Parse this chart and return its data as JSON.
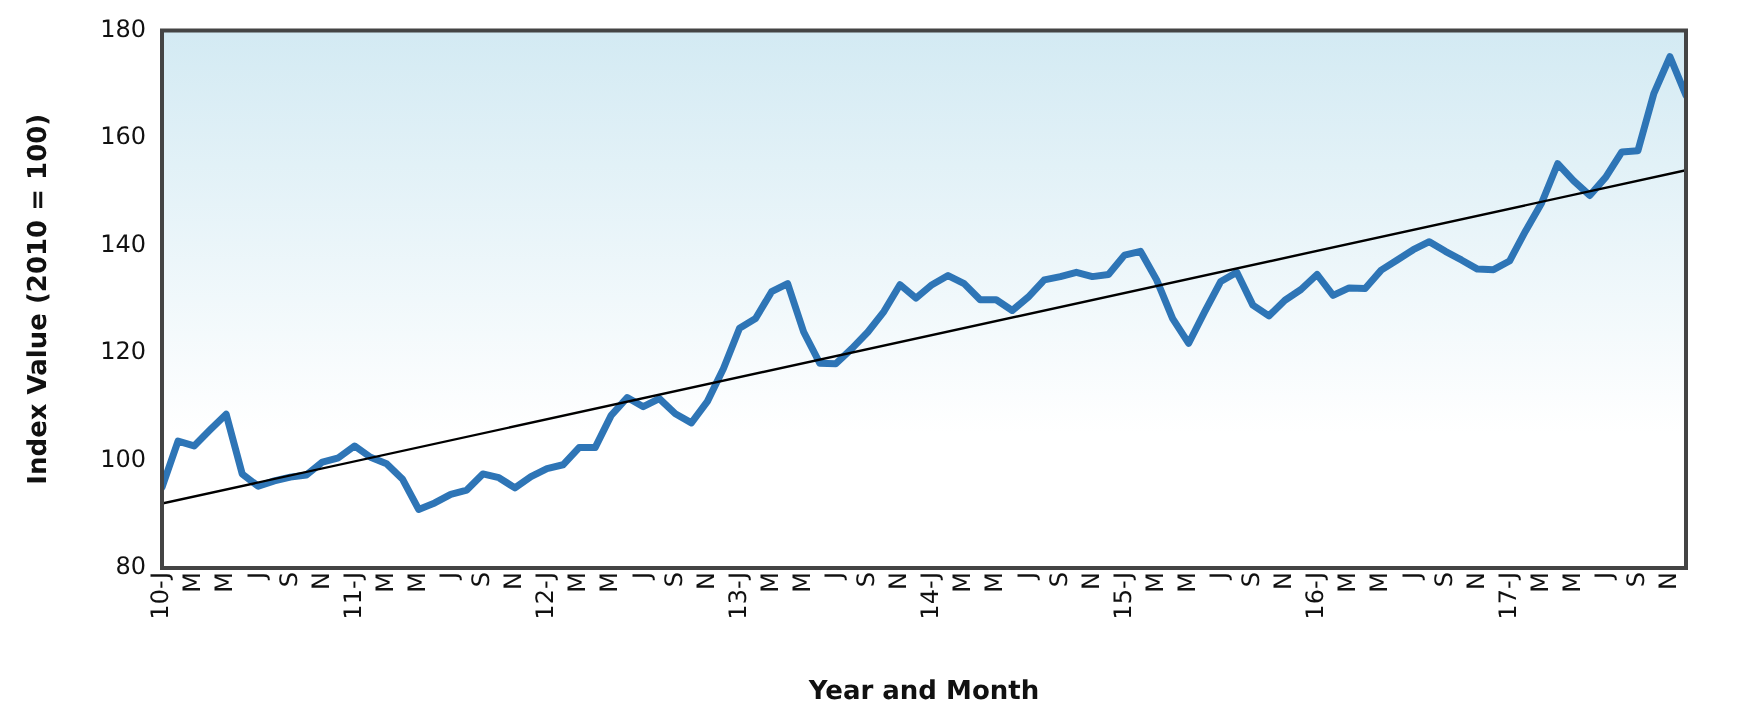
{
  "chart_data": {
    "type": "line",
    "xlabel": "Year and Month",
    "ylabel": "Index Value (2010 = 100)",
    "x": [
      "2010-01",
      "2010-02",
      "2010-03",
      "2010-04",
      "2010-05",
      "2010-06",
      "2010-07",
      "2010-08",
      "2010-09",
      "2010-10",
      "2010-11",
      "2010-12",
      "2011-01",
      "2011-02",
      "2011-03",
      "2011-04",
      "2011-05",
      "2011-06",
      "2011-07",
      "2011-08",
      "2011-09",
      "2011-10",
      "2011-11",
      "2011-12",
      "2012-01",
      "2012-02",
      "2012-03",
      "2012-04",
      "2012-05",
      "2012-06",
      "2012-07",
      "2012-08",
      "2012-09",
      "2012-10",
      "2012-11",
      "2012-12",
      "2013-01",
      "2013-02",
      "2013-03",
      "2013-04",
      "2013-05",
      "2013-06",
      "2013-07",
      "2013-08",
      "2013-09",
      "2013-10",
      "2013-11",
      "2013-12",
      "2014-01",
      "2014-02",
      "2014-03",
      "2014-04",
      "2014-05",
      "2014-06",
      "2014-07",
      "2014-08",
      "2014-09",
      "2014-10",
      "2014-11",
      "2014-12",
      "2015-01",
      "2015-02",
      "2015-03",
      "2015-04",
      "2015-05",
      "2015-06",
      "2015-07",
      "2015-08",
      "2015-09",
      "2015-10",
      "2015-11",
      "2015-12",
      "2016-01",
      "2016-02",
      "2016-03",
      "2016-04",
      "2016-05",
      "2016-06",
      "2016-07",
      "2016-08",
      "2016-09",
      "2016-10",
      "2016-11",
      "2016-12",
      "2017-01",
      "2017-02",
      "2017-03",
      "2017-04",
      "2017-05",
      "2017-06",
      "2017-07",
      "2017-08",
      "2017-09",
      "2017-10",
      "2017-11",
      "2017-12"
    ],
    "xlim": [
      "2010-01",
      "2017-12"
    ],
    "xticks": [
      {
        "value": "2010-01",
        "label": "10-J"
      },
      {
        "value": "2010-03",
        "label": "M"
      },
      {
        "value": "2010-05",
        "label": "M"
      },
      {
        "value": "2010-07",
        "label": "J"
      },
      {
        "value": "2010-09",
        "label": "S"
      },
      {
        "value": "2010-11",
        "label": "N"
      },
      {
        "value": "2011-01",
        "label": "11-J"
      },
      {
        "value": "2011-03",
        "label": "M"
      },
      {
        "value": "2011-05",
        "label": "M"
      },
      {
        "value": "2011-07",
        "label": "J"
      },
      {
        "value": "2011-09",
        "label": "S"
      },
      {
        "value": "2011-11",
        "label": "N"
      },
      {
        "value": "2012-01",
        "label": "12-J"
      },
      {
        "value": "2012-03",
        "label": "M"
      },
      {
        "value": "2012-05",
        "label": "M"
      },
      {
        "value": "2012-07",
        "label": "J"
      },
      {
        "value": "2012-09",
        "label": "S"
      },
      {
        "value": "2012-11",
        "label": "N"
      },
      {
        "value": "2013-01",
        "label": "13-J"
      },
      {
        "value": "2013-03",
        "label": "M"
      },
      {
        "value": "2013-05",
        "label": "M"
      },
      {
        "value": "2013-07",
        "label": "J"
      },
      {
        "value": "2013-09",
        "label": "S"
      },
      {
        "value": "2013-11",
        "label": "N"
      },
      {
        "value": "2014-01",
        "label": "14-J"
      },
      {
        "value": "2014-03",
        "label": "M"
      },
      {
        "value": "2014-05",
        "label": "M"
      },
      {
        "value": "2014-07",
        "label": "J"
      },
      {
        "value": "2014-09",
        "label": "S"
      },
      {
        "value": "2014-11",
        "label": "N"
      },
      {
        "value": "2015-01",
        "label": "15-J"
      },
      {
        "value": "2015-03",
        "label": "M"
      },
      {
        "value": "2015-05",
        "label": "M"
      },
      {
        "value": "2015-07",
        "label": "J"
      },
      {
        "value": "2015-09",
        "label": "S"
      },
      {
        "value": "2015-11",
        "label": "N"
      },
      {
        "value": "2016-01",
        "label": "16-J"
      },
      {
        "value": "2016-03",
        "label": "M"
      },
      {
        "value": "2016-05",
        "label": "M"
      },
      {
        "value": "2016-07",
        "label": "J"
      },
      {
        "value": "2016-09",
        "label": "S"
      },
      {
        "value": "2016-11",
        "label": "N"
      },
      {
        "value": "2017-01",
        "label": "17-J"
      },
      {
        "value": "2017-03",
        "label": "M"
      },
      {
        "value": "2017-05",
        "label": "M"
      },
      {
        "value": "2017-07",
        "label": "J"
      },
      {
        "value": "2017-09",
        "label": "S"
      },
      {
        "value": "2017-11",
        "label": "N"
      }
    ],
    "ylim": [
      80,
      180
    ],
    "yticks": [
      80,
      100,
      120,
      140,
      160,
      180
    ],
    "grid": false,
    "legend": false,
    "marker": "none",
    "series": [
      {
        "color": "#2e75b6",
        "values": [
          95,
          103.6,
          102.7,
          105.7,
          108.6,
          97.5,
          95.2,
          96.2,
          96.9,
          97.3,
          99.7,
          100.5,
          102.7,
          100.6,
          99.4,
          96.5,
          90.9,
          92.1,
          93.7,
          94.5,
          97.5,
          96.8,
          94.9,
          97,
          98.5,
          99.2,
          102.4,
          102.4,
          108.4,
          111.7,
          110,
          111.5,
          108.7,
          107,
          111,
          117.1,
          124.6,
          126.4,
          131.4,
          132.9,
          123.9,
          118.1,
          118,
          120.8,
          123.9,
          127.7,
          132.7,
          130.2,
          132.7,
          134.4,
          132.9,
          129.9,
          129.9,
          127.9,
          130.4,
          133.6,
          134.2,
          135,
          134.2,
          134.6,
          138.2,
          138.9,
          133.6,
          126.4,
          121.8,
          127.7,
          133.3,
          135,
          128.9,
          126.9,
          129.8,
          131.8,
          134.6,
          130.7,
          132.1,
          132,
          135.4,
          137.3,
          139.2,
          140.7,
          138.9,
          137.3,
          135.6,
          135.5,
          137.1,
          142.7,
          147.9,
          155.2,
          152,
          149.3,
          152.7,
          157.4,
          157.6,
          168.3,
          175.1,
          167.9
        ]
      },
      {
        "type": "line",
        "color": "#000000",
        "x": [
          "2010-01",
          "2017-12"
        ],
        "values": [
          92,
          154
        ]
      }
    ]
  }
}
